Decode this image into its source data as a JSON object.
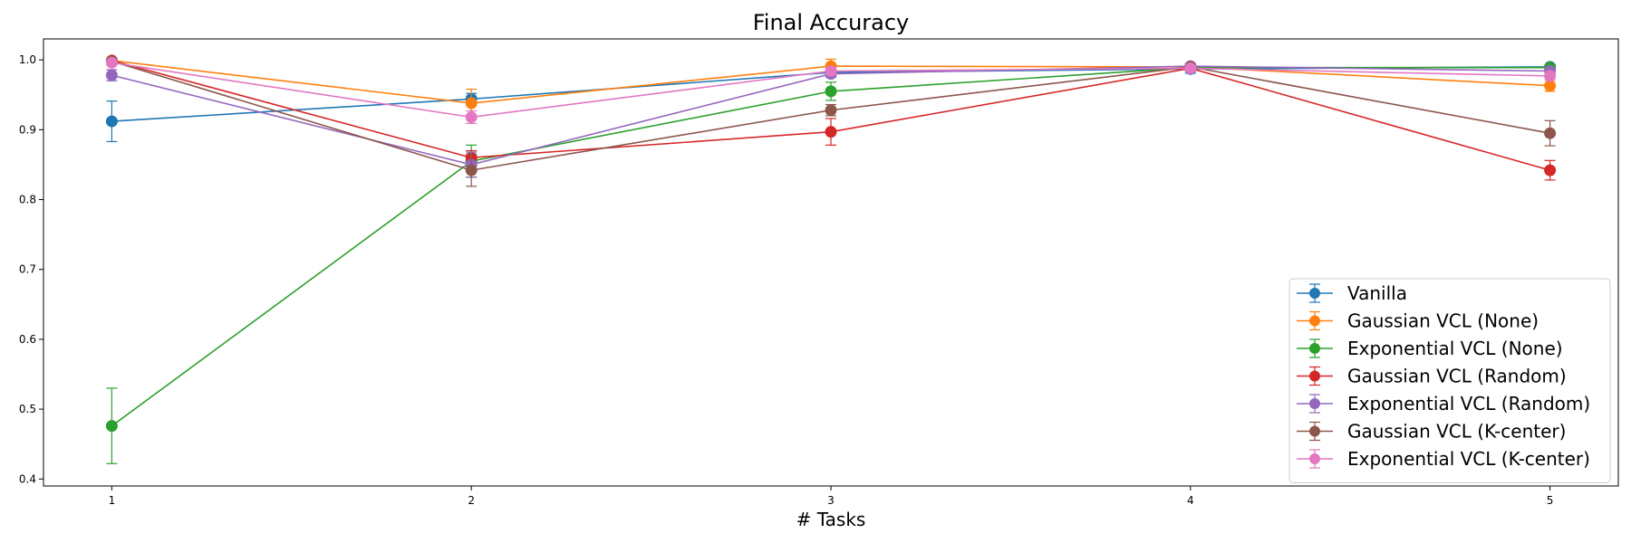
{
  "chart_data": {
    "type": "line",
    "title": "Final Accuracy",
    "xlabel": "# Tasks",
    "ylabel": "",
    "x": [
      1,
      2,
      3,
      4,
      5
    ],
    "xlim": [
      0.81,
      5.19
    ],
    "ylim": [
      0.39,
      1.03
    ],
    "yticks": [
      0.4,
      0.5,
      0.6,
      0.7,
      0.8,
      0.9,
      1.0
    ],
    "ytick_labels": [
      "0.4",
      "0.5",
      "0.6",
      "0.7",
      "0.8",
      "0.9",
      "1.0"
    ],
    "xtick_labels": [
      "1",
      "2",
      "3",
      "4",
      "5"
    ],
    "grid": false,
    "legend_position": "bottom-right",
    "series": [
      {
        "name": "Vanilla",
        "color": "#1f77b4",
        "values": [
          0.912,
          0.944,
          0.982,
          0.987,
          0.99
        ],
        "errors": [
          0.029,
          0.008,
          0.006,
          0.006,
          0.003
        ]
      },
      {
        "name": "Gaussian VCL (None)",
        "color": "#ff7f0e",
        "values": [
          0.999,
          0.938,
          0.991,
          0.99,
          0.963
        ],
        "errors": [
          0.002,
          0.02,
          0.01,
          0.004,
          0.008
        ]
      },
      {
        "name": "Exponential VCL (None)",
        "color": "#2ca02c",
        "values": [
          0.476,
          0.855,
          0.955,
          0.989,
          0.989
        ],
        "errors": [
          0.054,
          0.023,
          0.013,
          0.003,
          0.003
        ]
      },
      {
        "name": "Gaussian VCL (Random)",
        "color": "#d62728",
        "values": [
          0.999,
          0.86,
          0.897,
          0.988,
          0.842
        ],
        "errors": [
          0.002,
          0.01,
          0.019,
          0.003,
          0.014
        ]
      },
      {
        "name": "Exponential VCL (Random)",
        "color": "#9467bd",
        "values": [
          0.978,
          0.85,
          0.98,
          0.991,
          0.984
        ],
        "errors": [
          0.008,
          0.018,
          0.005,
          0.003,
          0.005
        ]
      },
      {
        "name": "Gaussian VCL (K-center)",
        "color": "#8c564b",
        "values": [
          0.998,
          0.842,
          0.928,
          0.99,
          0.895
        ],
        "errors": [
          0.002,
          0.023,
          0.008,
          0.004,
          0.018
        ]
      },
      {
        "name": "Exponential VCL (K-center)",
        "color": "#e377c2",
        "values": [
          0.996,
          0.918,
          0.984,
          0.988,
          0.977
        ],
        "errors": [
          0.003,
          0.009,
          0.005,
          0.004,
          0.006
        ]
      }
    ]
  }
}
